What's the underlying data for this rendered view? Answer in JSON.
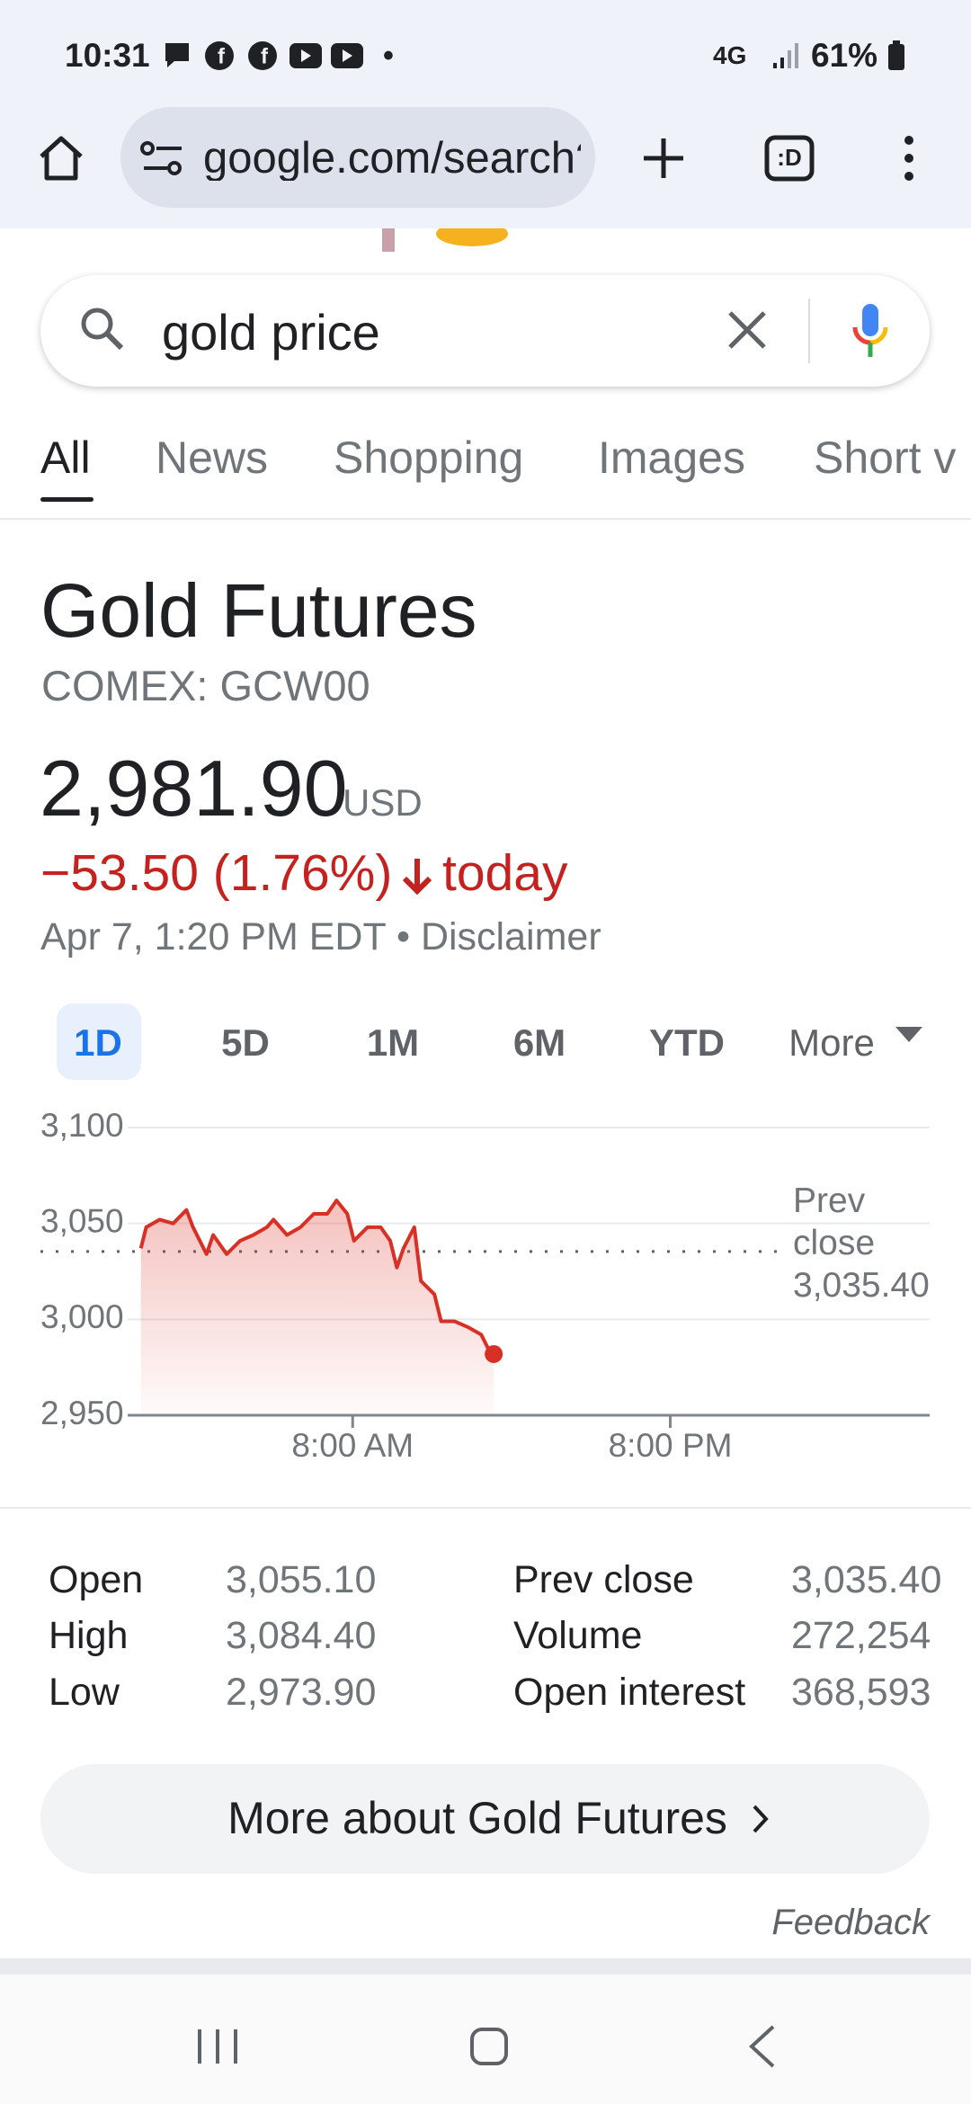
{
  "status_bar": {
    "time": "10:31",
    "dot": "•",
    "network": "4G",
    "battery": "61%"
  },
  "browser": {
    "url": "google.com/search?"
  },
  "search": {
    "query": "gold price"
  },
  "tabs": {
    "items": [
      "All",
      "News",
      "Shopping",
      "Images",
      "Short v"
    ],
    "active": 0
  },
  "quote": {
    "name": "Gold Futures",
    "symbol": "COMEX: GCW00",
    "price": "2,981.90",
    "currency": "USD",
    "change": "−53.50 (1.76%)",
    "change_period": "today",
    "timestamp": "Apr 7, 1:20 PM EDT",
    "separator": "•",
    "disclaimer": "Disclaimer"
  },
  "ranges": {
    "items": [
      "1D",
      "5D",
      "1M",
      "6M",
      "YTD",
      "More"
    ],
    "active": 0
  },
  "chart_data": {
    "type": "line",
    "color": "#d93025",
    "area": true,
    "grid": true,
    "x": [
      0,
      0.2,
      0.71,
      1.22,
      1.72,
      1.97,
      2.48,
      2.73,
      3.24,
      3.75,
      4.25,
      4.76,
      5.01,
      5.52,
      6.03,
      6.53,
      7.04,
      7.39,
      7.8,
      8.05,
      8.56,
      9.06,
      9.42,
      9.67,
      9.92,
      10.33,
      10.58,
      11.09,
      11.34,
      11.85,
      12.35,
      12.86,
      13.11,
      13.33
    ],
    "values": [
      3037,
      3048,
      3052,
      3050,
      3057,
      3048,
      3034,
      3044,
      3034,
      3041,
      3044,
      3048,
      3052,
      3044,
      3048,
      3055,
      3055,
      3062,
      3055,
      3041,
      3048,
      3048,
      3041,
      3027,
      3037,
      3048,
      3020,
      3013,
      2999,
      2999,
      2996,
      2992,
      2985,
      2981.9
    ],
    "xlim": [
      -0.5,
      29.8
    ],
    "xticks": [
      {
        "value": 8,
        "label": "8:00 AM"
      },
      {
        "value": 20,
        "label": "8:00 PM"
      }
    ],
    "ylim": [
      2950,
      3100
    ],
    "yticks": [
      {
        "value": 2950,
        "label": "2,950"
      },
      {
        "value": 3000,
        "label": "3,000"
      },
      {
        "value": 3050,
        "label": "3,050"
      },
      {
        "value": 3100,
        "label": "3,100"
      }
    ],
    "reference": {
      "value": 3035.4,
      "label": "Prev close",
      "value_label": "3,035.40"
    }
  },
  "stats": {
    "rows": [
      [
        "Open",
        "3,055.10",
        "Prev close",
        "3,035.40"
      ],
      [
        "High",
        "3,084.40",
        "Volume",
        "272,254"
      ],
      [
        "Low",
        "2,973.90",
        "Open interest",
        "368,593"
      ]
    ]
  },
  "more_button": "More about Gold Futures",
  "feedback": "Feedback"
}
